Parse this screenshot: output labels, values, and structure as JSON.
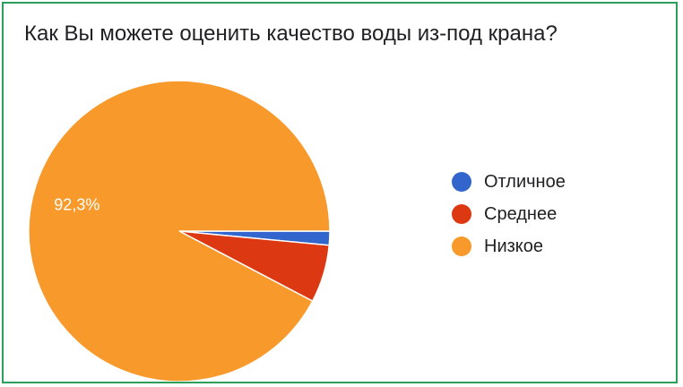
{
  "chart_data": {
    "type": "pie",
    "title": "Как Вы можете оценить качество воды из-под крана?",
    "categories": [
      "Отличное",
      "Среднее",
      "Низкое"
    ],
    "values": [
      1.5,
      6.2,
      92.3
    ],
    "colors": [
      "#3366cc",
      "#dc3912",
      "#f79a2b"
    ],
    "data_labels": [
      "",
      "",
      "92,3%"
    ],
    "legend_position": "right"
  }
}
